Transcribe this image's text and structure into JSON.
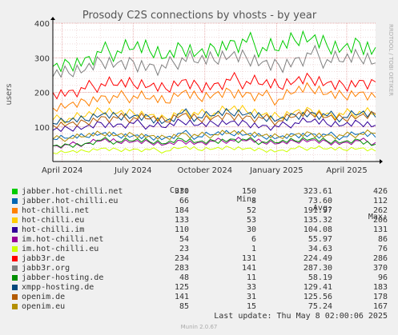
{
  "chart_data": {
    "type": "line",
    "title": "Prosody C2S connections by vhosts - by year",
    "ylabel": "users",
    "ylim": [
      0,
      400
    ],
    "yticks": [
      100,
      200,
      300,
      400
    ],
    "xrange": [
      "2024-03-20",
      "2025-05-08"
    ],
    "xticks": [
      {
        "label": "April 2024",
        "date": "2024-04-01"
      },
      {
        "label": "July 2024",
        "date": "2024-07-01"
      },
      {
        "label": "October 2024",
        "date": "2024-10-01"
      },
      {
        "label": "January 2025",
        "date": "2025-01-01"
      },
      {
        "label": "April 2025",
        "date": "2025-04-01"
      }
    ],
    "grid": true,
    "side_label": "RRDTOOL / TOBI OETIKER",
    "series": [
      {
        "name": "jabber.hot-chilli.net",
        "color": "#00cc00",
        "cur": "330",
        "min": "150",
        "avg": "323.61",
        "max": "426",
        "values": [
          275,
          285,
          300,
          315,
          320,
          325,
          320,
          300,
          330,
          315,
          330,
          350,
          345,
          330,
          320,
          350,
          355,
          335,
          330,
          345,
          330
        ]
      },
      {
        "name": "jabber.hot-chilli.eu",
        "color": "#0066b3",
        "cur": "66",
        "min": "8",
        "avg": "73.60",
        "max": "112",
        "values": [
          65,
          68,
          72,
          80,
          75,
          75,
          72,
          70,
          82,
          72,
          78,
          80,
          78,
          72,
          70,
          78,
          80,
          76,
          72,
          80,
          70
        ]
      },
      {
        "name": "hot-chilli.net",
        "color": "#ff8000",
        "cur": "184",
        "min": "52",
        "avg": "191.97",
        "max": "262",
        "values": [
          155,
          165,
          175,
          190,
          185,
          190,
          180,
          170,
          200,
          185,
          195,
          205,
          200,
          190,
          180,
          200,
          210,
          195,
          190,
          200,
          185
        ]
      },
      {
        "name": "hot-chilli.eu",
        "color": "#ffcc00",
        "cur": "133",
        "min": "53",
        "avg": "135.32",
        "max": "206",
        "values": [
          120,
          125,
          130,
          145,
          140,
          140,
          135,
          125,
          150,
          135,
          140,
          150,
          145,
          135,
          130,
          145,
          150,
          140,
          135,
          145,
          135
        ]
      },
      {
        "name": "hot-chilli.im",
        "color": "#330099",
        "cur": "110",
        "min": "30",
        "avg": "104.08",
        "max": "131",
        "values": [
          90,
          95,
          100,
          112,
          108,
          110,
          105,
          98,
          115,
          105,
          110,
          115,
          112,
          105,
          100,
          112,
          115,
          108,
          105,
          112,
          105
        ]
      },
      {
        "name": "im.hot-chilli.net",
        "color": "#990099",
        "cur": "54",
        "min": "6",
        "avg": "55.97",
        "max": "86",
        "values": [
          45,
          48,
          52,
          60,
          56,
          57,
          55,
          50,
          60,
          55,
          58,
          62,
          60,
          55,
          52,
          58,
          62,
          57,
          55,
          60,
          55
        ]
      },
      {
        "name": "im.hot-chilli.eu",
        "color": "#ccff00",
        "cur": "23",
        "min": "1",
        "avg": "34.63",
        "max": "76",
        "values": [
          25,
          28,
          30,
          38,
          35,
          36,
          34,
          30,
          40,
          34,
          37,
          40,
          38,
          34,
          32,
          37,
          40,
          36,
          34,
          38,
          30
        ]
      },
      {
        "name": "jabb3r.de",
        "color": "#ff0000",
        "cur": "234",
        "min": "131",
        "avg": "224.49",
        "max": "286",
        "values": [
          200,
          205,
          210,
          225,
          220,
          222,
          218,
          210,
          235,
          220,
          225,
          235,
          232,
          222,
          215,
          232,
          240,
          228,
          222,
          235,
          230
        ]
      },
      {
        "name": "jabb3r.org",
        "color": "#808080",
        "cur": "283",
        "min": "141",
        "avg": "287.30",
        "max": "370",
        "values": [
          245,
          255,
          265,
          290,
          285,
          288,
          282,
          270,
          300,
          285,
          292,
          305,
          300,
          288,
          280,
          298,
          310,
          295,
          288,
          300,
          285
        ]
      },
      {
        "name": "jabber-hosting.de",
        "color": "#008f00",
        "cur": "48",
        "min": "11",
        "avg": "58.19",
        "max": "96",
        "values": [
          45,
          48,
          52,
          62,
          58,
          60,
          57,
          52,
          65,
          57,
          60,
          65,
          62,
          57,
          54,
          60,
          65,
          59,
          57,
          62,
          50
        ]
      },
      {
        "name": "xmpp-hosting.de",
        "color": "#00487d",
        "cur": "125",
        "min": "33",
        "avg": "129.41",
        "max": "183",
        "values": [
          110,
          115,
          120,
          135,
          130,
          132,
          128,
          118,
          140,
          128,
          133,
          140,
          137,
          128,
          122,
          135,
          142,
          132,
          128,
          137,
          128
        ]
      },
      {
        "name": "openim.de",
        "color": "#b35a00",
        "cur": "141",
        "min": "31",
        "avg": "125.56",
        "max": "178",
        "values": [
          105,
          110,
          115,
          130,
          125,
          127,
          123,
          115,
          135,
          123,
          128,
          135,
          132,
          124,
          118,
          130,
          138,
          128,
          124,
          132,
          138
        ]
      },
      {
        "name": "openim.eu",
        "color": "#b38f00",
        "cur": "85",
        "min": "15",
        "avg": "75.24",
        "max": "167",
        "values": [
          65,
          68,
          72,
          80,
          76,
          77,
          74,
          70,
          82,
          74,
          78,
          82,
          80,
          75,
          72,
          78,
          82,
          77,
          74,
          80,
          82
        ]
      }
    ]
  },
  "legend": {
    "headers": {
      "cur": "Cur:",
      "min": "Min:",
      "avg": "Avg:",
      "max": "Max:"
    }
  },
  "footer": {
    "last_update": "Last update: Thu May  8 02:00:06 2025",
    "munin": "Munin 2.0.67"
  }
}
